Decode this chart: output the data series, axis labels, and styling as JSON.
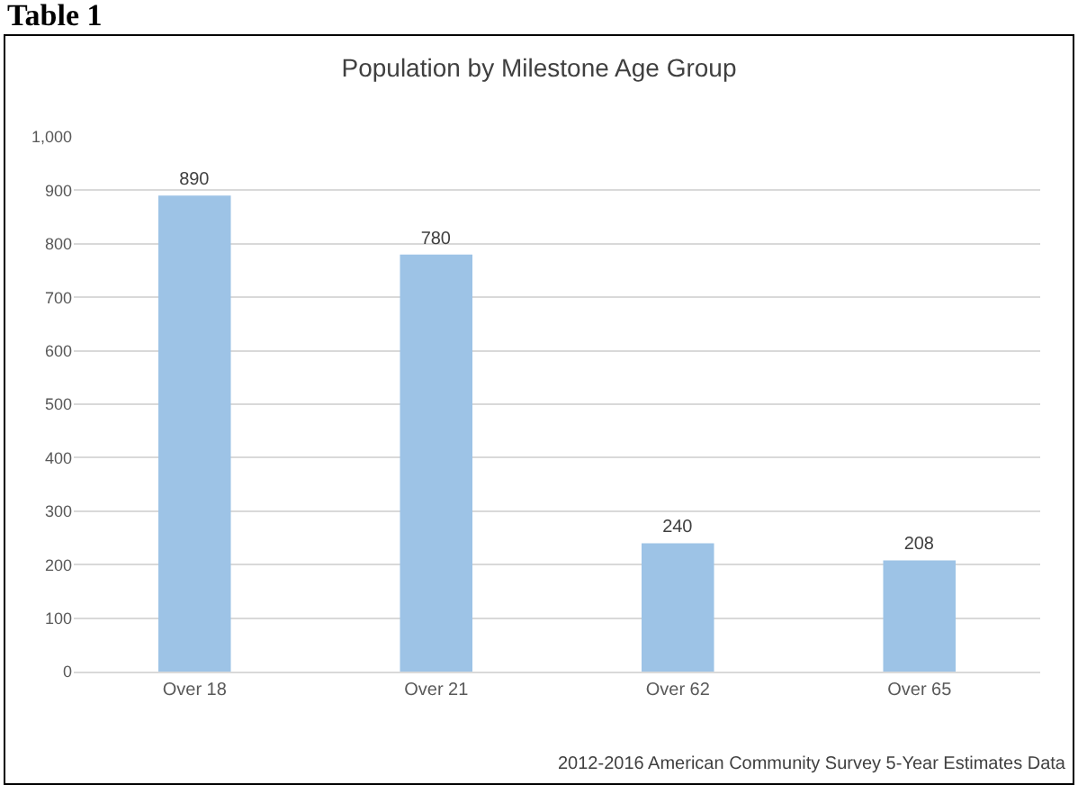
{
  "chart_data": {
    "type": "bar",
    "title": "Population by Milestone Age Group",
    "categories": [
      "Over 18",
      "Over 21",
      "Over 62",
      "Over 65"
    ],
    "values": [
      890,
      780,
      240,
      208
    ],
    "color": "#9dc3e6",
    "ylim": [
      0,
      1000
    ],
    "yticks": [
      0,
      100,
      200,
      300,
      400,
      500,
      600,
      700,
      800,
      900,
      {
        "value": 1000,
        "label": "1,000"
      }
    ],
    "grid": "y",
    "data_labels": true,
    "annotations": [
      "Table 1",
      "2012-2016 American Community Survey 5-Year Estimates Data"
    ]
  }
}
